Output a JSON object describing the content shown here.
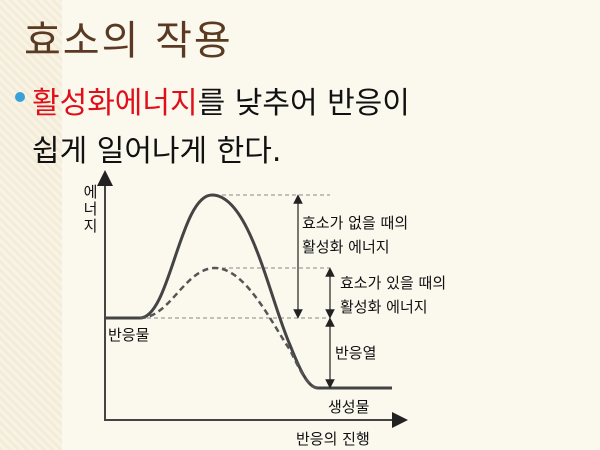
{
  "header": {
    "title": "효소의 작용"
  },
  "bullet": {
    "highlight": "활성화에너지",
    "text": "를 낮추어 반응이",
    "continuation": "쉽게 일어나게 한다."
  },
  "diagram": {
    "y_axis_label": "에너지",
    "x_axis_label": "반응의 진행",
    "without_enzyme": [
      "효소가 없을 때의",
      "활성화 에너지"
    ],
    "with_enzyme": [
      "효소가 있을 때의",
      "활성화 에너지"
    ],
    "reaction_heat": "반응열",
    "reactant": "반응물",
    "product": "생성물"
  }
}
